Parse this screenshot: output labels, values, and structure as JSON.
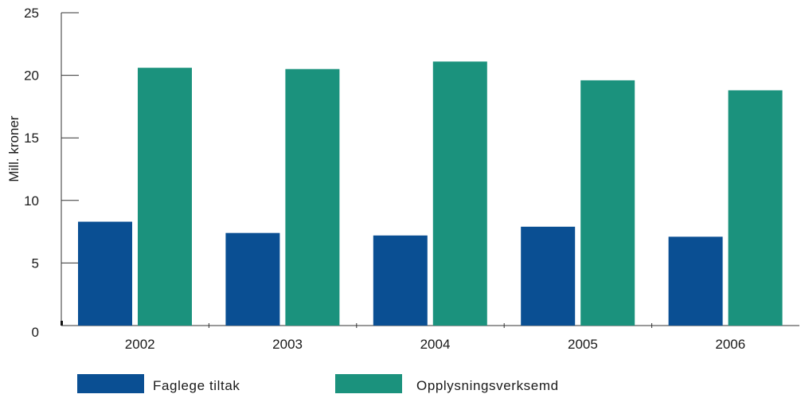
{
  "colors": {
    "faglege_tiltak": "#0a4f93",
    "opplysningsverksemd": "#1b927d",
    "axis": "#333333"
  },
  "chart_data": {
    "type": "bar",
    "title": "",
    "xlabel": "",
    "ylabel": "Mill. kroner",
    "ylim": [
      0,
      25
    ],
    "y_ticks": [
      "0",
      "5",
      "10",
      "15",
      "20",
      "25"
    ],
    "categories": [
      "2002",
      "2003",
      "2004",
      "2005",
      "2006"
    ],
    "series": [
      {
        "name": "Faglege tiltak",
        "values": [
          8.3,
          7.4,
          7.2,
          7.9,
          7.1
        ]
      },
      {
        "name": "Opplysningsverksemd",
        "values": [
          20.6,
          20.5,
          21.1,
          19.6,
          18.8
        ]
      }
    ],
    "grid": false,
    "legend_position": "bottom"
  }
}
